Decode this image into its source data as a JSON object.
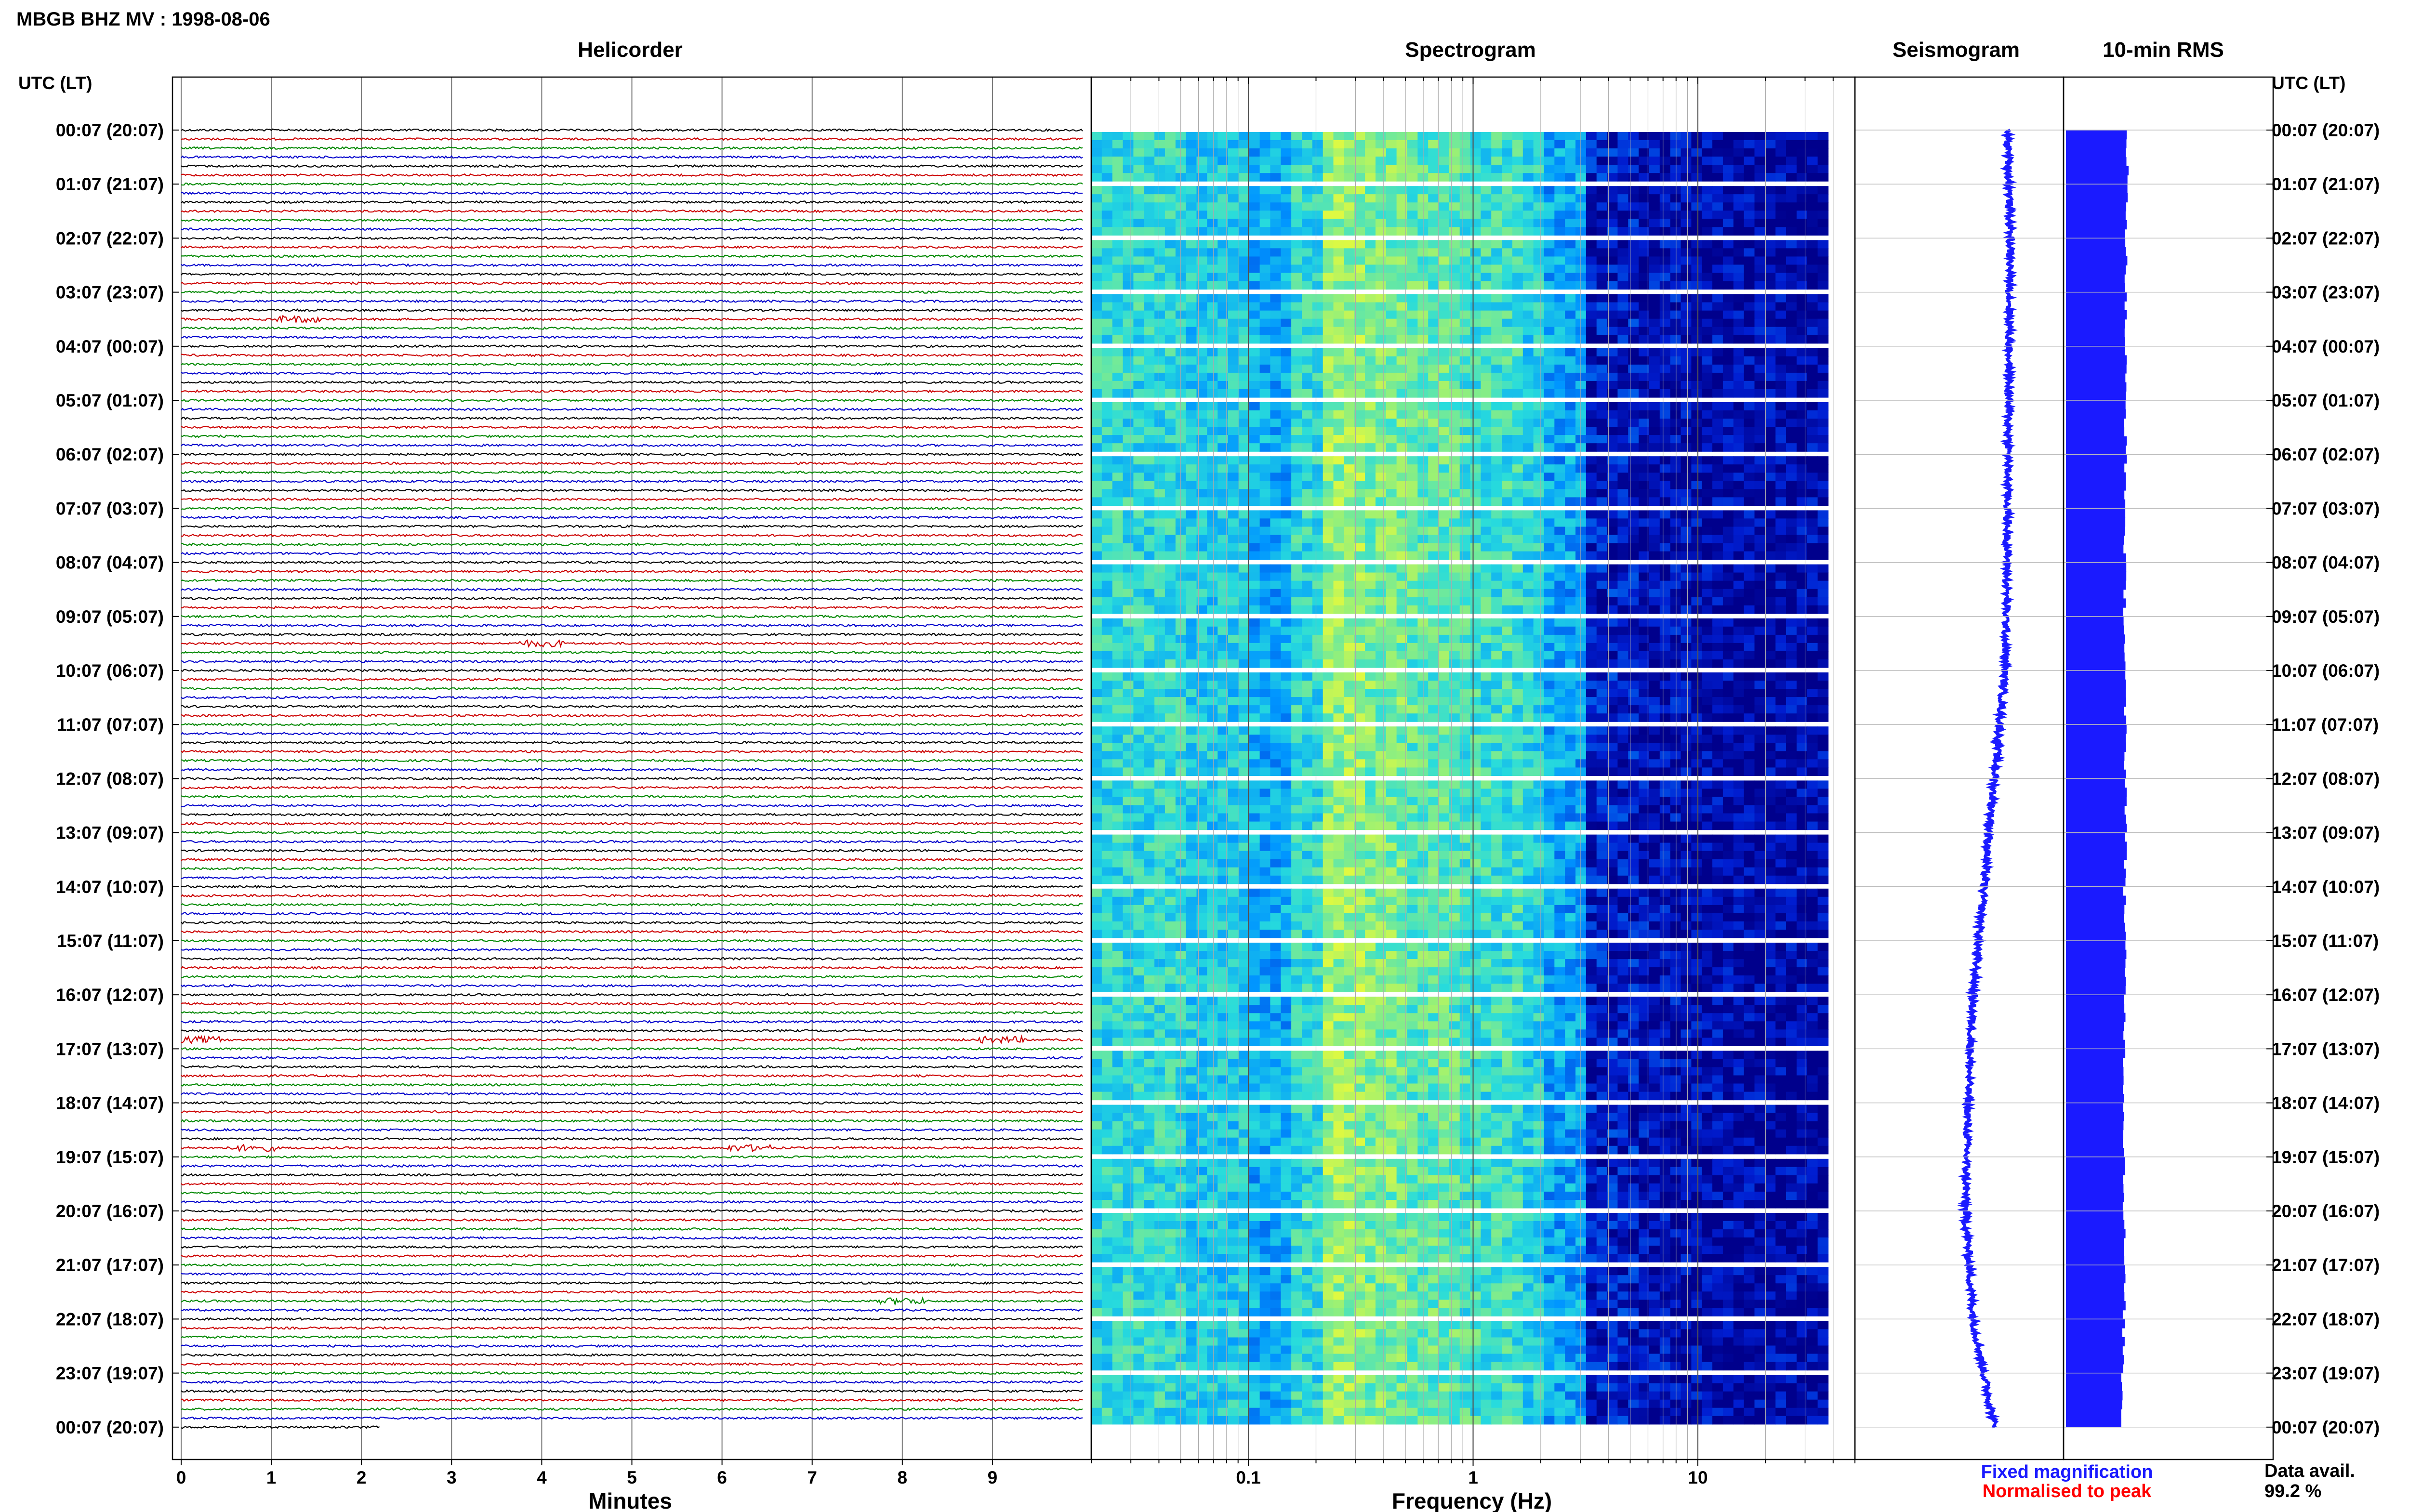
{
  "header": {
    "title": "MBGB BHZ MV : 1998-08-06",
    "left_axis_label": "UTC (LT)",
    "right_axis_label": "UTC (LT)"
  },
  "panels": {
    "helicorder": "Helicorder",
    "spectrogram": "Spectrogram",
    "seismogram": "Seismogram",
    "rms": "10-min RMS"
  },
  "row_labels": [
    "00:07 (20:07)",
    "01:07 (21:07)",
    "02:07 (22:07)",
    "03:07 (23:07)",
    "04:07 (00:07)",
    "05:07 (01:07)",
    "06:07 (02:07)",
    "07:07 (03:07)",
    "08:07 (04:07)",
    "09:07 (05:07)",
    "10:07 (06:07)",
    "11:07 (07:07)",
    "12:07 (08:07)",
    "13:07 (09:07)",
    "14:07 (10:07)",
    "15:07 (11:07)",
    "16:07 (12:07)",
    "17:07 (13:07)",
    "18:07 (14:07)",
    "19:07 (15:07)",
    "20:07 (16:07)",
    "21:07 (17:07)",
    "22:07 (18:07)",
    "23:07 (19:07)",
    "00:07 (20:07)"
  ],
  "footer": {
    "minutes_label": "Minutes",
    "frequency_label": "Frequency (Hz)",
    "legend_fixed": "Fixed magnification",
    "legend_normalised": "Normalised to peak",
    "data_avail_label": "Data avail.",
    "data_avail_value": "99.2 %"
  },
  "colors": {
    "helicorder_traces": [
      "#000000",
      "#cc0000",
      "#008800",
      "#0000cc"
    ],
    "seismogram": "#1a1aff",
    "rms": "#1a1aff",
    "legend_fixed": "#1a1aff",
    "legend_normalised": "#ff0000"
  },
  "chart_data": [
    {
      "type": "line",
      "name": "helicorder",
      "x_ticks": [
        0,
        1,
        2,
        3,
        4,
        5,
        6,
        7,
        8,
        9
      ],
      "xlabel": "Minutes",
      "xlim": [
        0,
        10
      ],
      "traces_per_hour": 6,
      "hours": 24,
      "final_trace_extent_min": 2.2,
      "events": [
        {
          "hour": 3,
          "trace": 3,
          "minute": 1.3
        },
        {
          "hour": 9,
          "trace": 3,
          "minute": 4.0
        },
        {
          "hour": 16,
          "trace": 5,
          "minute": 0.2
        },
        {
          "hour": 16,
          "trace": 5,
          "minute": 9.1
        },
        {
          "hour": 18,
          "trace": 5,
          "minute": 0.8
        },
        {
          "hour": 18,
          "trace": 5,
          "minute": 6.3
        },
        {
          "hour": 21,
          "trace": 4,
          "minute": 8.0
        }
      ]
    },
    {
      "type": "heatmap",
      "name": "spectrogram",
      "xscale": "log",
      "x_ticks": [
        0.1,
        1,
        10
      ],
      "x_tick_labels": [
        "0.1",
        "1",
        "10"
      ],
      "xlim": [
        0.02,
        50
      ],
      "xlabel": "Frequency (Hz)",
      "hours": 24,
      "frequency_bands_hz": [
        0.02,
        0.05,
        0.1,
        0.15,
        0.2,
        0.3,
        0.5,
        0.8,
        1,
        1.5,
        2,
        3,
        5,
        8,
        12,
        20,
        40
      ],
      "relative_power_by_band": [
        0.55,
        0.5,
        0.42,
        0.55,
        0.75,
        0.7,
        0.65,
        0.6,
        0.58,
        0.52,
        0.4,
        0.12,
        0.08,
        0.06,
        0.05,
        0.05
      ]
    },
    {
      "type": "line",
      "name": "seismogram",
      "x": [
        0,
        2,
        4,
        6,
        8,
        10,
        12,
        14,
        16,
        18,
        20,
        22,
        24
      ],
      "y": [
        0.55,
        0.6,
        0.58,
        0.56,
        0.54,
        0.5,
        0.3,
        0.1,
        -0.1,
        -0.2,
        -0.25,
        -0.1,
        0.3
      ]
    },
    {
      "type": "bar",
      "name": "10-min RMS",
      "hours": 24,
      "values_per_hour": 6,
      "relative_values": [
        0.98,
        0.97,
        0.96,
        0.95,
        0.95,
        0.95,
        0.95,
        0.94,
        0.94,
        0.94,
        0.94,
        0.95,
        0.96,
        0.95,
        0.94,
        0.94,
        0.94,
        0.93,
        0.93,
        0.93,
        0.93,
        0.93,
        0.92,
        0.9
      ]
    }
  ]
}
